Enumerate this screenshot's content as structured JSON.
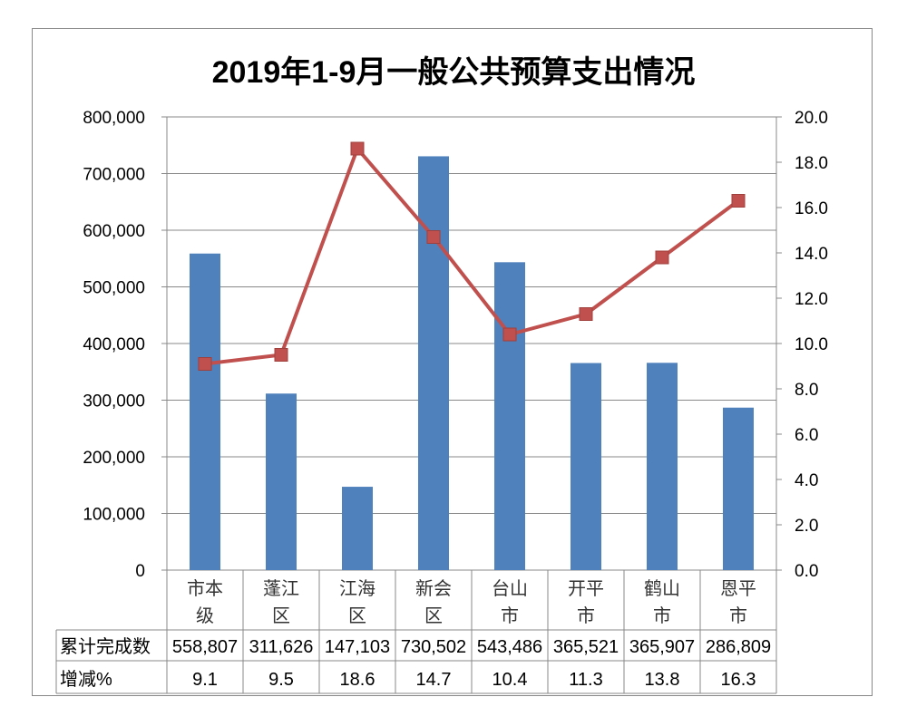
{
  "chart_data": {
    "type": "bar+line",
    "title": "2019年1-9月一般公共预算支出情况",
    "categories": [
      [
        "市本",
        "级"
      ],
      [
        "蓬江",
        "区"
      ],
      [
        "江海",
        "区"
      ],
      [
        "新会",
        "区"
      ],
      [
        "台山",
        "市"
      ],
      [
        "开平",
        "市"
      ],
      [
        "鹤山",
        "市"
      ],
      [
        "恩平",
        "市"
      ]
    ],
    "series": [
      {
        "name": "累计完成数",
        "type": "bar",
        "axis": "left",
        "color": "#4F81BD",
        "values": [
          558807,
          311626,
          147103,
          730502,
          543486,
          365521,
          365907,
          286809
        ],
        "labels": [
          "558,807",
          "311,626",
          "147,103",
          "730,502",
          "543,486",
          "365,521",
          "365,907",
          "286,809"
        ]
      },
      {
        "name": "增减%",
        "type": "line",
        "axis": "right",
        "color": "#C0504D",
        "values": [
          9.1,
          9.5,
          18.6,
          14.7,
          10.4,
          11.3,
          13.8,
          16.3
        ],
        "labels": [
          "9.1",
          "9.5",
          "18.6",
          "14.7",
          "10.4",
          "11.3",
          "13.8",
          "16.3"
        ]
      }
    ],
    "left_axis": {
      "ylim": [
        0,
        800000
      ],
      "ticks": [
        "0",
        "100,000",
        "200,000",
        "300,000",
        "400,000",
        "500,000",
        "600,000",
        "700,000",
        "800,000"
      ]
    },
    "right_axis": {
      "ylim": [
        0,
        20
      ],
      "ticks": [
        "0.0",
        "2.0",
        "4.0",
        "6.0",
        "8.0",
        "10.0",
        "12.0",
        "14.0",
        "16.0",
        "18.0",
        "20.0"
      ]
    },
    "grid": true,
    "legend": "data-table"
  }
}
